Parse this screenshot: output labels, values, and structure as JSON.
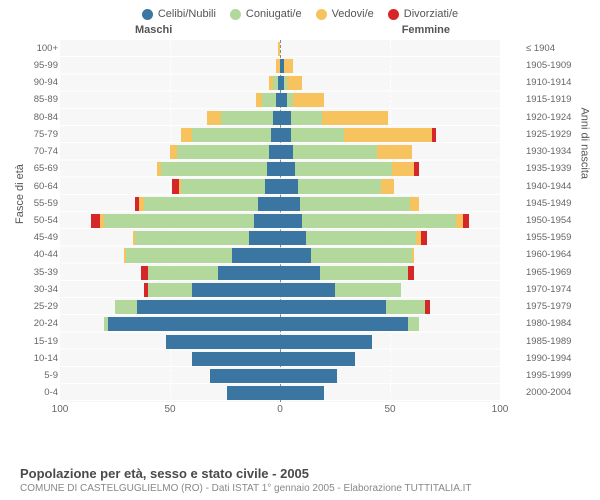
{
  "legend": [
    {
      "label": "Celibi/Nubili",
      "color": "#3b76a3"
    },
    {
      "label": "Coniugati/e",
      "color": "#b3d89c"
    },
    {
      "label": "Vedovi/e",
      "color": "#f7c35f"
    },
    {
      "label": "Divorziati/e",
      "color": "#d62728"
    }
  ],
  "gender": {
    "left": "Maschi",
    "right": "Femmine"
  },
  "axis": {
    "left_title": "Fasce di età",
    "right_title": "Anni di nascita",
    "x_max": 100,
    "x_ticks": [
      100,
      50,
      0,
      50,
      100
    ]
  },
  "colors": {
    "celibi": "#3b76a3",
    "coniugati": "#b3d89c",
    "vedovi": "#f7c35f",
    "divorziati": "#d62728",
    "plot_bg": "#f7f7f7",
    "grid": "#ffffff",
    "center": "#888888"
  },
  "footer": {
    "title": "Popolazione per età, sesso e stato civile - 2005",
    "subtitle": "COMUNE DI CASTELGUGLIELMO (RO) - Dati ISTAT 1° gennaio 2005 - Elaborazione TUTTITALIA.IT"
  },
  "rows": [
    {
      "age": "100+",
      "birth": "≤ 1904",
      "m": {
        "c": 0,
        "co": 0,
        "v": 1,
        "d": 0
      },
      "f": {
        "c": 0,
        "co": 0,
        "v": 0,
        "d": 0
      }
    },
    {
      "age": "95-99",
      "birth": "1905-1909",
      "m": {
        "c": 0,
        "co": 0,
        "v": 2,
        "d": 0
      },
      "f": {
        "c": 2,
        "co": 0,
        "v": 4,
        "d": 0
      }
    },
    {
      "age": "90-94",
      "birth": "1910-1914",
      "m": {
        "c": 1,
        "co": 2,
        "v": 2,
        "d": 0
      },
      "f": {
        "c": 2,
        "co": 1,
        "v": 7,
        "d": 0
      }
    },
    {
      "age": "85-89",
      "birth": "1915-1919",
      "m": {
        "c": 2,
        "co": 6,
        "v": 3,
        "d": 0
      },
      "f": {
        "c": 3,
        "co": 3,
        "v": 14,
        "d": 0
      }
    },
    {
      "age": "80-84",
      "birth": "1920-1924",
      "m": {
        "c": 3,
        "co": 24,
        "v": 6,
        "d": 0
      },
      "f": {
        "c": 5,
        "co": 14,
        "v": 30,
        "d": 0
      }
    },
    {
      "age": "75-79",
      "birth": "1925-1929",
      "m": {
        "c": 4,
        "co": 36,
        "v": 5,
        "d": 0
      },
      "f": {
        "c": 5,
        "co": 24,
        "v": 40,
        "d": 2
      }
    },
    {
      "age": "70-74",
      "birth": "1930-1934",
      "m": {
        "c": 5,
        "co": 42,
        "v": 3,
        "d": 0
      },
      "f": {
        "c": 6,
        "co": 38,
        "v": 16,
        "d": 0
      }
    },
    {
      "age": "65-69",
      "birth": "1935-1939",
      "m": {
        "c": 6,
        "co": 48,
        "v": 2,
        "d": 0
      },
      "f": {
        "c": 7,
        "co": 44,
        "v": 10,
        "d": 2
      }
    },
    {
      "age": "60-64",
      "birth": "1940-1944",
      "m": {
        "c": 7,
        "co": 38,
        "v": 1,
        "d": 3
      },
      "f": {
        "c": 8,
        "co": 38,
        "v": 6,
        "d": 0
      }
    },
    {
      "age": "55-59",
      "birth": "1945-1949",
      "m": {
        "c": 10,
        "co": 52,
        "v": 2,
        "d": 2
      },
      "f": {
        "c": 9,
        "co": 50,
        "v": 4,
        "d": 0
      }
    },
    {
      "age": "50-54",
      "birth": "1950-1954",
      "m": {
        "c": 12,
        "co": 68,
        "v": 2,
        "d": 4
      },
      "f": {
        "c": 10,
        "co": 70,
        "v": 3,
        "d": 3
      }
    },
    {
      "age": "45-49",
      "birth": "1955-1959",
      "m": {
        "c": 14,
        "co": 52,
        "v": 1,
        "d": 0
      },
      "f": {
        "c": 12,
        "co": 50,
        "v": 2,
        "d": 3
      }
    },
    {
      "age": "40-44",
      "birth": "1960-1964",
      "m": {
        "c": 22,
        "co": 48,
        "v": 1,
        "d": 0
      },
      "f": {
        "c": 14,
        "co": 46,
        "v": 1,
        "d": 0
      }
    },
    {
      "age": "35-39",
      "birth": "1965-1969",
      "m": {
        "c": 28,
        "co": 32,
        "v": 0,
        "d": 3
      },
      "f": {
        "c": 18,
        "co": 40,
        "v": 0,
        "d": 3
      }
    },
    {
      "age": "30-34",
      "birth": "1970-1974",
      "m": {
        "c": 40,
        "co": 20,
        "v": 0,
        "d": 2
      },
      "f": {
        "c": 25,
        "co": 30,
        "v": 0,
        "d": 0
      }
    },
    {
      "age": "25-29",
      "birth": "1975-1979",
      "m": {
        "c": 65,
        "co": 10,
        "v": 0,
        "d": 0
      },
      "f": {
        "c": 48,
        "co": 18,
        "v": 0,
        "d": 2
      }
    },
    {
      "age": "20-24",
      "birth": "1980-1984",
      "m": {
        "c": 78,
        "co": 2,
        "v": 0,
        "d": 0
      },
      "f": {
        "c": 58,
        "co": 5,
        "v": 0,
        "d": 0
      }
    },
    {
      "age": "15-19",
      "birth": "1985-1989",
      "m": {
        "c": 52,
        "co": 0,
        "v": 0,
        "d": 0
      },
      "f": {
        "c": 42,
        "co": 0,
        "v": 0,
        "d": 0
      }
    },
    {
      "age": "10-14",
      "birth": "1990-1994",
      "m": {
        "c": 40,
        "co": 0,
        "v": 0,
        "d": 0
      },
      "f": {
        "c": 34,
        "co": 0,
        "v": 0,
        "d": 0
      }
    },
    {
      "age": "5-9",
      "birth": "1995-1999",
      "m": {
        "c": 32,
        "co": 0,
        "v": 0,
        "d": 0
      },
      "f": {
        "c": 26,
        "co": 0,
        "v": 0,
        "d": 0
      }
    },
    {
      "age": "0-4",
      "birth": "2000-2004",
      "m": {
        "c": 24,
        "co": 0,
        "v": 0,
        "d": 0
      },
      "f": {
        "c": 20,
        "co": 0,
        "v": 0,
        "d": 0
      }
    }
  ]
}
